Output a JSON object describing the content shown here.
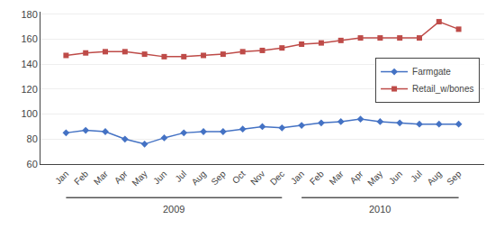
{
  "chart_data": {
    "type": "line",
    "categories": [
      "Jan",
      "Feb",
      "Mar",
      "Apr",
      "May",
      "Jun",
      "Jul",
      "Aug",
      "Sep",
      "Oct",
      "Nov",
      "Dec",
      "Jan",
      "Feb",
      "Mar",
      "Apr",
      "May",
      "Jun",
      "Jul",
      "Aug",
      "Sep"
    ],
    "series": [
      {
        "name": "Farmgate",
        "color": "#4472C4",
        "marker": "diamond",
        "values": [
          85,
          87,
          86,
          80,
          76,
          81,
          85,
          86,
          86,
          88,
          90,
          89,
          91,
          93,
          94,
          96,
          94,
          93,
          92,
          92,
          92
        ]
      },
      {
        "name": "Retail_w/bones",
        "color": "#BE4B48",
        "marker": "square",
        "values": [
          147,
          149,
          150,
          150,
          148,
          146,
          146,
          147,
          148,
          150,
          151,
          153,
          156,
          157,
          159,
          161,
          161,
          161,
          161,
          174,
          168
        ]
      }
    ],
    "ylim": [
      60,
      182
    ],
    "yticks": [
      60,
      80,
      100,
      120,
      140,
      160,
      180
    ],
    "grid": true,
    "legend": "right",
    "annotations": [
      "2009",
      "2010"
    ]
  }
}
